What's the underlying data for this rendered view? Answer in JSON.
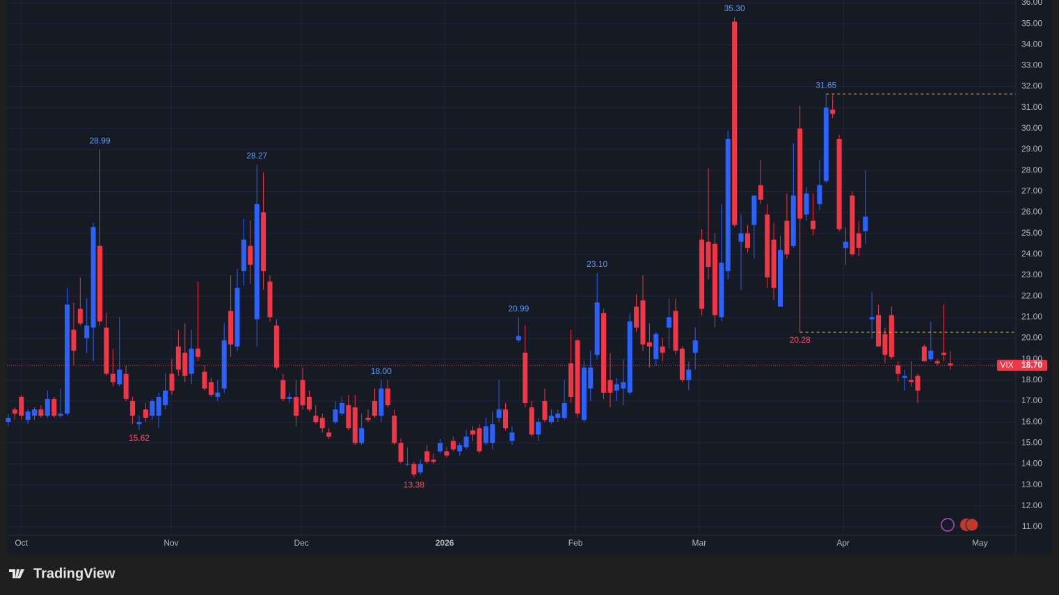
{
  "chart_data": {
    "type": "candlestick",
    "symbol": "VIX",
    "up_color": "#2962ff",
    "down_color": "#f23645",
    "open": [
      16.0,
      16.6,
      17.2,
      16.1,
      16.3,
      16.6,
      16.3,
      17.1,
      16.3,
      16.4,
      20.4,
      21.4,
      20.0,
      20.5,
      24.4,
      20.5,
      18.3,
      17.8,
      18.3,
      17.0,
      15.9,
      16.6,
      16.3,
      16.3,
      16.8,
      18.3,
      19.6,
      19.3,
      18.3,
      19.5,
      18.4,
      17.9,
      17.2,
      17.6,
      21.3,
      19.6,
      23.2,
      24.4,
      20.9,
      26.0,
      22.7,
      20.6,
      18.0,
      17.1,
      17.2,
      18.0,
      17.2,
      16.3,
      16.2,
      15.5,
      16.0,
      16.4,
      16.8,
      16.7,
      15.0,
      16.2,
      17.0,
      16.3,
      17.6,
      16.3,
      15.0,
      14.0,
      14.0,
      13.6,
      14.6,
      14.2,
      14.6,
      14.6,
      15.1,
      14.6,
      14.8,
      15.6,
      15.7,
      15.0,
      15.0,
      16.2,
      16.6,
      15.1,
      19.9,
      19.3,
      16.7,
      15.4,
      17.0,
      16.0,
      16.2,
      16.2,
      18.8,
      19.9,
      16.1,
      17.6,
      19.2,
      21.2,
      18.0,
      17.5,
      17.6,
      17.4,
      21.5,
      21.8,
      19.8,
      19.0,
      19.6,
      20.5,
      21.3,
      19.5,
      18.0,
      19.3,
      24.7,
      24.6,
      24.5,
      21.0,
      23.2,
      35.1,
      24.6,
      25.0,
      25.4,
      27.3,
      25.9,
      24.7,
      21.5,
      25.6,
      24.4,
      30.0,
      25.9,
      25.6,
      26.4,
      27.5,
      30.9,
      29.5,
      24.3,
      26.8,
      25.0,
      25.1,
      20.9,
      21.1,
      20.2,
      21.1,
      18.7,
      18.1,
      18.0,
      18.2,
      19.6,
      19.0,
      18.9,
      19.3,
      18.8
    ],
    "high": [
      16.4,
      16.7,
      17.3,
      16.6,
      16.7,
      16.8,
      17.5,
      17.2,
      17.6,
      22.4,
      21.7,
      22.9,
      21.9,
      25.5,
      28.99,
      21.2,
      19.5,
      21.0,
      18.7,
      17.2,
      16.3,
      16.9,
      17.1,
      17.4,
      18.3,
      19.0,
      20.4,
      20.7,
      20.4,
      22.7,
      18.7,
      18.1,
      18.0,
      20.7,
      23.0,
      23.3,
      25.7,
      25.6,
      28.27,
      27.9,
      23.0,
      20.9,
      18.3,
      17.4,
      18.0,
      18.6,
      17.5,
      16.8,
      16.4,
      15.7,
      17.0,
      17.2,
      17.3,
      17.3,
      16.4,
      16.6,
      17.6,
      18.0,
      18.0,
      16.6,
      15.2,
      14.8,
      14.1,
      14.2,
      14.9,
      14.5,
      15.2,
      14.8,
      15.3,
      15.0,
      15.6,
      15.8,
      15.9,
      16.2,
      16.5,
      18.0,
      16.9,
      15.8,
      20.99,
      20.6,
      17.0,
      16.2,
      17.6,
      16.6,
      16.6,
      18.0,
      20.4,
      20.0,
      18.9,
      19.4,
      23.1,
      21.4,
      19.3,
      18.1,
      19.0,
      21.2,
      22.1,
      23.0,
      20.7,
      20.3,
      20.0,
      21.9,
      21.9,
      19.6,
      18.9,
      20.5,
      25.2,
      28.1,
      25.0,
      26.4,
      29.9,
      35.3,
      25.9,
      25.4,
      26.8,
      28.5,
      26.4,
      25.5,
      24.9,
      26.9,
      29.3,
      31.1,
      27.2,
      26.9,
      28.5,
      31.65,
      31.6,
      29.7,
      25.3,
      27.0,
      25.6,
      28.0,
      22.2,
      21.6,
      20.5,
      21.5,
      18.9,
      18.5,
      18.9,
      18.3,
      19.7,
      20.8,
      19.0,
      21.6,
      19.4
    ],
    "low": [
      15.8,
      16.1,
      16.1,
      15.9,
      16.1,
      16.2,
      16.2,
      16.2,
      16.2,
      16.3,
      18.7,
      20.6,
      19.3,
      18.9,
      20.6,
      18.2,
      17.7,
      17.7,
      17.0,
      15.9,
      15.62,
      16.0,
      16.1,
      15.7,
      16.6,
      17.3,
      18.2,
      17.9,
      17.8,
      18.9,
      17.5,
      17.2,
      17.0,
      17.4,
      19.1,
      19.4,
      22.5,
      22.6,
      19.6,
      22.3,
      20.8,
      18.5,
      17.0,
      16.9,
      15.8,
      16.6,
      16.5,
      15.9,
      15.5,
      15.2,
      15.9,
      16.3,
      15.6,
      14.9,
      14.9,
      16.0,
      16.2,
      16.0,
      16.7,
      14.9,
      14.0,
      13.9,
      13.38,
      13.5,
      14.0,
      14.0,
      14.5,
      14.3,
      14.6,
      14.4,
      14.7,
      15.1,
      14.5,
      14.9,
      14.7,
      16.0,
      15.6,
      14.9,
      19.8,
      16.7,
      15.3,
      15.1,
      16.0,
      15.9,
      16.0,
      16.1,
      16.9,
      16.2,
      16.0,
      17.0,
      19.0,
      17.1,
      16.7,
      17.0,
      16.8,
      17.3,
      20.3,
      19.4,
      18.6,
      18.7,
      18.9,
      19.5,
      19.2,
      17.9,
      17.5,
      18.5,
      21.1,
      22.8,
      20.5,
      20.8,
      22.8,
      25.3,
      22.3,
      24.1,
      23.8,
      26.4,
      22.4,
      21.8,
      21.5,
      23.8,
      24.3,
      20.28,
      25.6,
      24.9,
      26.1,
      27.4,
      30.5,
      25.1,
      23.5,
      23.9,
      23.9,
      24.5,
      20.0,
      19.6,
      18.8,
      19.0,
      17.9,
      17.5,
      17.7,
      16.9,
      18.9,
      18.9,
      18.7,
      18.9,
      18.5
    ],
    "close": [
      16.2,
      16.4,
      16.3,
      16.5,
      16.6,
      16.3,
      17.1,
      16.3,
      16.4,
      21.6,
      19.4,
      20.7,
      20.6,
      25.3,
      20.8,
      18.3,
      17.9,
      18.5,
      17.1,
      16.3,
      16.0,
      16.2,
      17.0,
      17.2,
      17.5,
      17.5,
      18.5,
      18.2,
      19.5,
      19.1,
      17.6,
      17.3,
      17.4,
      19.9,
      19.7,
      22.4,
      24.7,
      23.5,
      26.4,
      23.2,
      21.0,
      18.6,
      17.1,
      17.2,
      16.3,
      16.8,
      16.6,
      16.0,
      15.7,
      15.3,
      16.6,
      16.9,
      15.7,
      15.0,
      15.7,
      16.1,
      16.3,
      17.6,
      16.8,
      15.0,
      14.1,
      14.0,
      13.5,
      14.0,
      14.1,
      14.1,
      15.0,
      14.4,
      14.7,
      14.9,
      15.3,
      15.4,
      14.6,
      15.8,
      15.9,
      16.6,
      15.7,
      15.5,
      20.1,
      16.9,
      15.4,
      16.0,
      16.1,
      16.3,
      16.4,
      16.9,
      17.2,
      16.4,
      18.6,
      18.6,
      21.7,
      17.4,
      17.4,
      17.8,
      17.9,
      20.8,
      20.5,
      19.7,
      19.6,
      20.2,
      19.3,
      21.0,
      19.4,
      18.0,
      18.5,
      19.9,
      21.4,
      23.4,
      21.1,
      23.6,
      29.5,
      25.4,
      25.0,
      24.3,
      26.8,
      26.6,
      22.9,
      22.4,
      24.2,
      24.0,
      26.8,
      25.7,
      26.9,
      25.2,
      27.3,
      31.0,
      30.7,
      25.2,
      24.6,
      24.0,
      24.3,
      25.8,
      21.0,
      19.6,
      19.2,
      19.1,
      18.3,
      18.2,
      17.9,
      17.5,
      18.9,
      19.4,
      18.8,
      19.2,
      18.7
    ],
    "xlim": [
      -0.2,
      154
    ],
    "xticks": [
      {
        "value": 2.0,
        "label": "Oct"
      },
      {
        "value": 24.9,
        "label": "Nov"
      },
      {
        "value": 44.8,
        "label": "Dec"
      },
      {
        "value": 66.7,
        "label": "2026"
      },
      {
        "value": 86.7,
        "label": "Feb"
      },
      {
        "value": 105.6,
        "label": "Mar"
      },
      {
        "value": 127.6,
        "label": "Apr"
      },
      {
        "value": 148.5,
        "label": "May"
      }
    ],
    "ylim": [
      10.6,
      36.13
    ],
    "yticks": [
      {
        "value": 11,
        "label": "11.00"
      },
      {
        "value": 12,
        "label": "12.00"
      },
      {
        "value": 13,
        "label": "13.00"
      },
      {
        "value": 14,
        "label": "14.00"
      },
      {
        "value": 15,
        "label": "15.00"
      },
      {
        "value": 16,
        "label": "16.00"
      },
      {
        "value": 17,
        "label": "17.00"
      },
      {
        "value": 18,
        "label": "18.00"
      },
      {
        "value": 19,
        "label": "19.00"
      },
      {
        "value": 20,
        "label": "20.00"
      },
      {
        "value": 21,
        "label": "21.00"
      },
      {
        "value": 22,
        "label": "22.00"
      },
      {
        "value": 23,
        "label": "23.00"
      },
      {
        "value": 24,
        "label": "24.00"
      },
      {
        "value": 25,
        "label": "25.00"
      },
      {
        "value": 26,
        "label": "26.00"
      },
      {
        "value": 27,
        "label": "27.00"
      },
      {
        "value": 28,
        "label": "28.00"
      },
      {
        "value": 29,
        "label": "29.00"
      },
      {
        "value": 30,
        "label": "30.00"
      },
      {
        "value": 31,
        "label": "31.00"
      },
      {
        "value": 32,
        "label": "32.00"
      },
      {
        "value": 33,
        "label": "33.00"
      },
      {
        "value": 34,
        "label": "34.00"
      },
      {
        "value": 35,
        "label": "35.00"
      },
      {
        "value": 36,
        "label": "36.00"
      }
    ],
    "grid": true,
    "annotations": [
      {
        "text": "28.99",
        "x": 14,
        "y": 28.99,
        "color": "#5b9cf6"
      },
      {
        "text": "15.62",
        "x": 20,
        "y": 15.62,
        "color": "#f7525f"
      },
      {
        "text": "28.27",
        "x": 38,
        "y": 28.27,
        "color": "#5b9cf6"
      },
      {
        "text": "18.00",
        "x": 57,
        "y": 18.0,
        "color": "#5b9cf6"
      },
      {
        "text": "13.38",
        "x": 62,
        "y": 13.38,
        "color": "#f7525f"
      },
      {
        "text": "20.99",
        "x": 78,
        "y": 20.99,
        "color": "#5b9cf6"
      },
      {
        "text": "23.10",
        "x": 90,
        "y": 23.1,
        "color": "#5b9cf6"
      },
      {
        "text": "35.30",
        "x": 111,
        "y": 35.3,
        "color": "#5b9cf6"
      },
      {
        "text": "31.65",
        "x": 125,
        "y": 31.65,
        "color": "#5b9cf6"
      },
      {
        "text": "20.28",
        "x": 121,
        "y": 20.28,
        "color": "#f7525f"
      }
    ],
    "reference_lines": [
      {
        "value": 31.65,
        "from": 125,
        "color": "#e6c619"
      },
      {
        "value": 20.28,
        "from": 121,
        "color": "#e6c619"
      }
    ],
    "last_price": {
      "value": 18.7,
      "value_label": "18.70",
      "color": "#f23645"
    },
    "brand": "TradingView"
  }
}
